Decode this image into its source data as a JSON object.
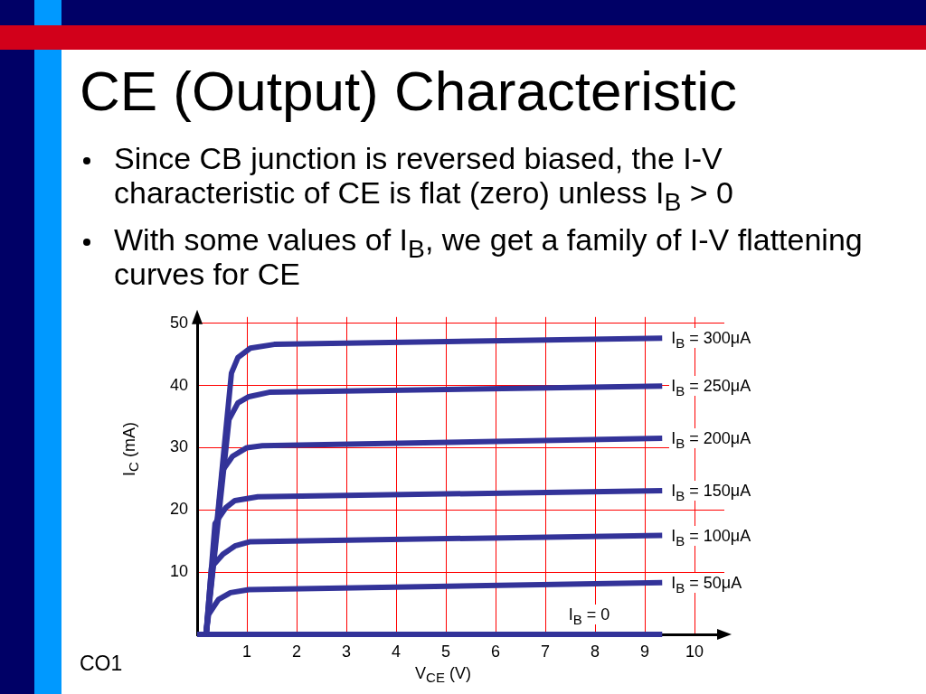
{
  "chart_data": {
    "type": "line",
    "title": "CE (Output) Characteristic",
    "annotations": [
      "Since CB junction is reversed biased, the I-V characteristic of CE is flat (zero) unless I$_{B}$ > 0",
      "With some values of I$_{B}$, we get a family of I-V flattening curves for CE",
      "CO1"
    ],
    "xlabel": "V$_{CE}$ (V)",
    "ylabel": "I$_{C}$ (mA)",
    "xlim": [
      0,
      10.6
    ],
    "ylim": [
      0,
      51
    ],
    "xticks": [
      1,
      2,
      3,
      4,
      5,
      6,
      7,
      8,
      9,
      10
    ],
    "yticks": [
      10,
      20,
      30,
      40,
      50
    ],
    "grid": true,
    "series": [
      {
        "name": "I$_{B}$ = 300μA",
        "color": "#333399",
        "x": [
          0.18,
          0.69,
          0.82,
          1.07,
          1.55,
          9.35
        ],
        "values": [
          0,
          42,
          44.5,
          46,
          46.6,
          47.6
        ]
      },
      {
        "name": "I$_{B}$ = 250μA",
        "color": "#333399",
        "x": [
          0.18,
          0.64,
          0.82,
          1.04,
          1.45,
          9.35
        ],
        "values": [
          0,
          34.5,
          37.2,
          38.2,
          38.9,
          39.9
        ]
      },
      {
        "name": "I$_{B}$ = 200μA",
        "color": "#333399",
        "x": [
          0.18,
          0.51,
          0.71,
          1.0,
          1.31,
          9.35
        ],
        "values": [
          0,
          26.3,
          28.6,
          30.0,
          30.3,
          31.5
        ]
      },
      {
        "name": "I$_{B}$ = 150μA",
        "color": "#333399",
        "x": [
          0.18,
          0.36,
          0.58,
          0.76,
          1.22,
          9.35
        ],
        "values": [
          0,
          17.8,
          20.4,
          21.5,
          22.1,
          23.1
        ]
      },
      {
        "name": "I$_{B}$ = 100μA",
        "color": "#333399",
        "x": [
          0.18,
          0.29,
          0.52,
          0.76,
          1.07,
          9.35
        ],
        "values": [
          0,
          10.8,
          12.9,
          14.2,
          14.9,
          15.9
        ]
      },
      {
        "name": "I$_{B}$ = 50μA",
        "color": "#333399",
        "x": [
          0.18,
          0.23,
          0.43,
          0.67,
          1.04,
          9.35
        ],
        "values": [
          0,
          3.2,
          5.6,
          6.7,
          7.2,
          8.3
        ]
      },
      {
        "name": "I$_{B}$ = 0",
        "color": "#333399",
        "x": [
          0,
          9.35
        ],
        "values": [
          0,
          0
        ]
      }
    ]
  }
}
